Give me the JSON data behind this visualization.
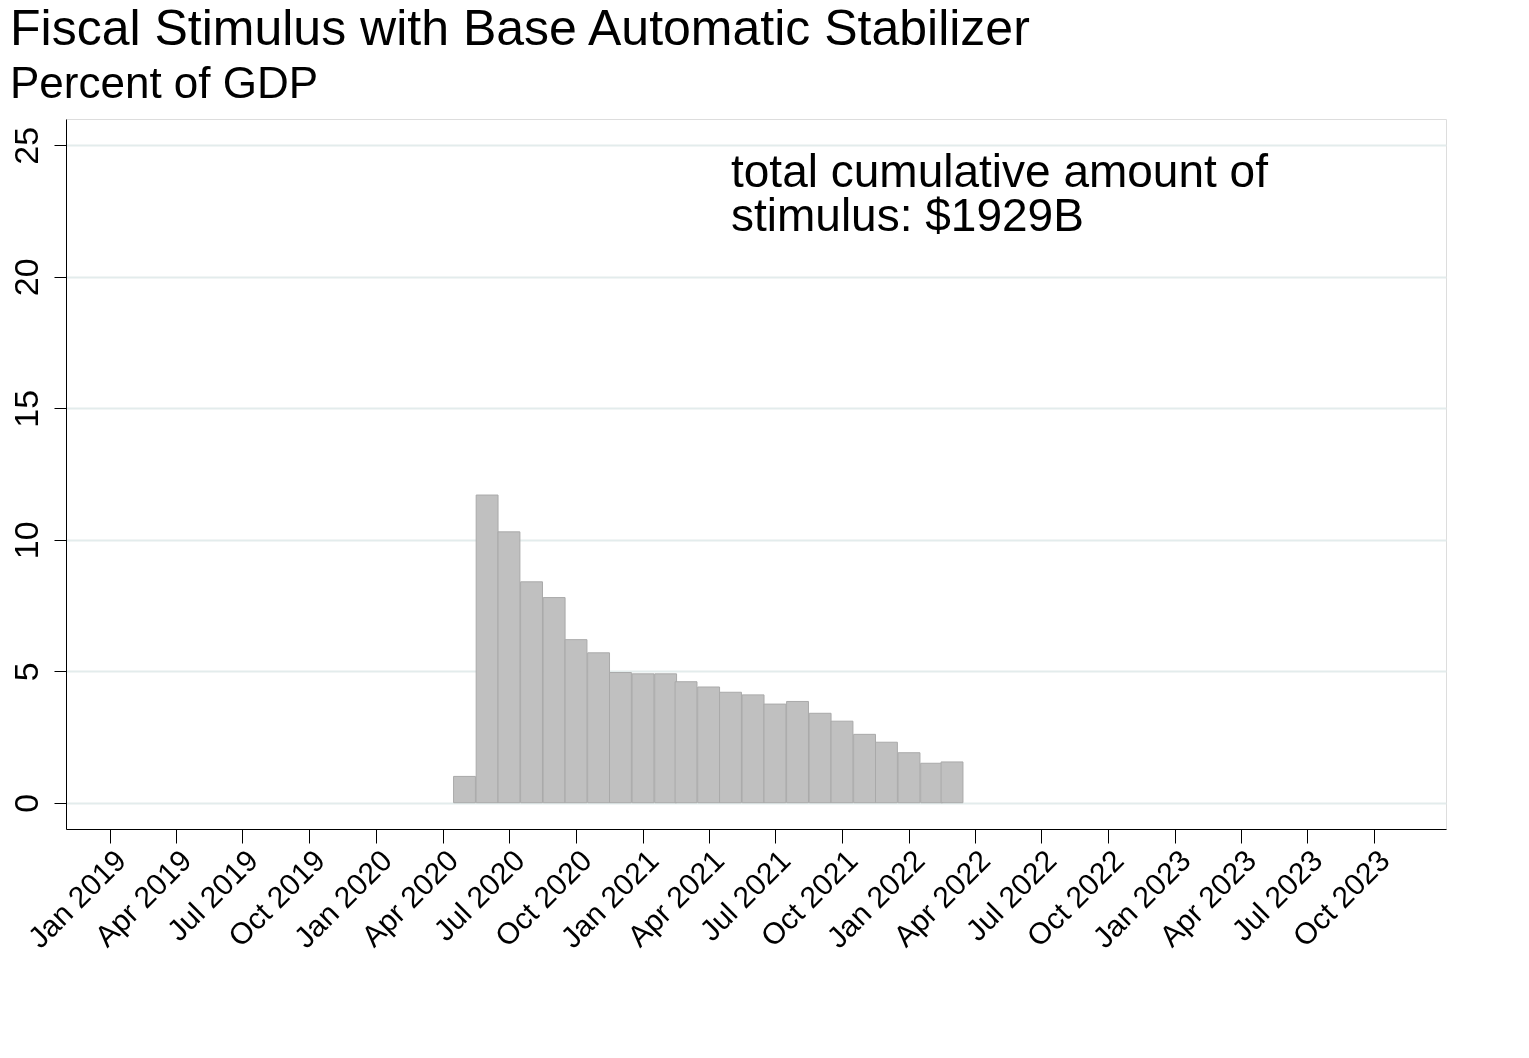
{
  "chart_data": {
    "type": "bar",
    "title": "Fiscal Stimulus with Base Automatic Stabilizer",
    "subtitle": "Percent of GDP",
    "x": [
      "2020-05",
      "2020-06",
      "2020-07",
      "2020-08",
      "2020-09",
      "2020-10",
      "2020-11",
      "2020-12",
      "2021-01",
      "2021-02",
      "2021-03",
      "2021-04",
      "2021-05",
      "2021-06",
      "2021-07",
      "2021-08",
      "2021-09",
      "2021-10",
      "2021-11",
      "2021-12",
      "2022-01",
      "2022-02",
      "2022-03"
    ],
    "series": [
      {
        "color": "#c0c0c0",
        "values": [
          1.0,
          11.7,
          10.3,
          8.4,
          7.8,
          6.2,
          5.7,
          4.95,
          4.9,
          4.9,
          4.6,
          4.4,
          4.2,
          4.1,
          3.75,
          3.85,
          3.4,
          3.1,
          2.6,
          2.3,
          1.9,
          1.5,
          1.55
        ]
      }
    ],
    "xlim": [
      "2018-11-08",
      "2024-01-01"
    ],
    "xticks": [
      {
        "value": "2019-01",
        "label": "Jan 2019"
      },
      {
        "value": "2019-04",
        "label": "Apr 2019"
      },
      {
        "value": "2019-07",
        "label": "Jul 2019"
      },
      {
        "value": "2019-10",
        "label": "Oct 2019"
      },
      {
        "value": "2020-01",
        "label": "Jan 2020"
      },
      {
        "value": "2020-04",
        "label": "Apr 2020"
      },
      {
        "value": "2020-07",
        "label": "Jul 2020"
      },
      {
        "value": "2020-10",
        "label": "Oct 2020"
      },
      {
        "value": "2021-01",
        "label": "Jan 2021"
      },
      {
        "value": "2021-04",
        "label": "Apr 2021"
      },
      {
        "value": "2021-07",
        "label": "Jul 2021"
      },
      {
        "value": "2021-10",
        "label": "Oct 2021"
      },
      {
        "value": "2022-01",
        "label": "Jan 2022"
      },
      {
        "value": "2022-04",
        "label": "Apr 2022"
      },
      {
        "value": "2022-07",
        "label": "Jul 2022"
      },
      {
        "value": "2022-10",
        "label": "Oct 2022"
      },
      {
        "value": "2023-01",
        "label": "Jan 2023"
      },
      {
        "value": "2023-04",
        "label": "Apr 2023"
      },
      {
        "value": "2023-07",
        "label": "Jul 2023"
      },
      {
        "value": "2023-10",
        "label": "Oct 2023"
      }
    ],
    "ylim": [
      -1,
      26
    ],
    "yticks": [
      0,
      5,
      10,
      15,
      20,
      25
    ],
    "grid": "y",
    "annotations": [
      "total cumulative amount of\nstimulus: $1929B"
    ]
  }
}
